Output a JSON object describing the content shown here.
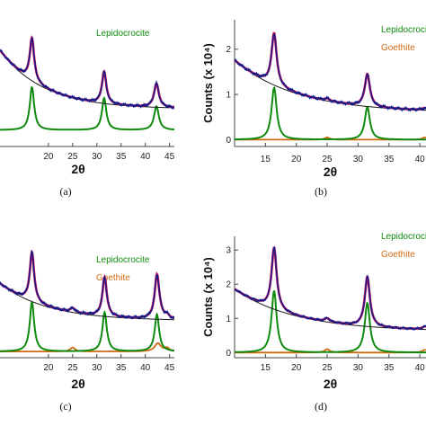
{
  "colors": {
    "fit": "#1f2fbf",
    "model": "#c0135a",
    "observed": "#0b1a8a",
    "background": "#1a1a1a",
    "lepidocrocite": "#0f8a0f",
    "goethite": "#d06a10",
    "axis": "#444444"
  },
  "chart_data": [
    {
      "type": "line",
      "caption": "(a)",
      "xlabel": "2θ",
      "ylabel": "",
      "xlim": [
        10,
        46
      ],
      "ylim": [
        -0.4,
        2.7
      ],
      "xticks": [
        20,
        25,
        30,
        35,
        40,
        45
      ],
      "yticks": [],
      "legend": [
        "Lepidocrocite"
      ],
      "peaks": {
        "lepidocrocite": [
          {
            "x": 16.6,
            "h": 1.05,
            "w": 0.55
          },
          {
            "x": 31.5,
            "h": 0.78,
            "w": 0.55
          },
          {
            "x": 42.3,
            "h": 0.58,
            "w": 0.6
          }
        ],
        "goethite": []
      },
      "background_curve": {
        "y_start": 1.95,
        "y_end": 0.52,
        "decay": 9
      },
      "offsets": {
        "phase": 0.0
      }
    },
    {
      "type": "line",
      "caption": "(b)",
      "xlabel": "2θ",
      "ylabel": "Counts (x 10⁴)",
      "xlim": [
        10,
        41
      ],
      "ylim": [
        -0.15,
        2.65
      ],
      "xticks": [
        15,
        20,
        25,
        30,
        35,
        40
      ],
      "yticks": [
        0,
        1,
        2
      ],
      "legend": [
        "Lepidocrocite",
        "Goethite"
      ],
      "peaks": {
        "lepidocrocite": [
          {
            "x": 16.4,
            "h": 1.15,
            "w": 0.5
          },
          {
            "x": 31.5,
            "h": 0.72,
            "w": 0.5
          }
        ],
        "goethite": [
          {
            "x": 25.0,
            "h": 0.05,
            "w": 0.5
          },
          {
            "x": 40.8,
            "h": 0.05,
            "w": 0.5
          }
        ]
      },
      "background_curve": {
        "y_start": 1.75,
        "y_end": 0.6,
        "decay": 10
      },
      "offsets": {
        "phase": 0.0
      }
    },
    {
      "type": "line",
      "caption": "(c)",
      "xlabel": "2θ",
      "ylabel": "",
      "xlim": [
        10,
        46
      ],
      "ylim": [
        -0.15,
        2.8
      ],
      "xticks": [
        20,
        25,
        30,
        35,
        40,
        45
      ],
      "yticks": [],
      "legend": [
        "Lepidocrocite",
        "Goethite"
      ],
      "peaks": {
        "lepidocrocite": [
          {
            "x": 16.6,
            "h": 1.2,
            "w": 0.55
          },
          {
            "x": 31.6,
            "h": 0.95,
            "w": 0.55
          },
          {
            "x": 42.4,
            "h": 0.9,
            "w": 0.55
          }
        ],
        "goethite": [
          {
            "x": 25.0,
            "h": 0.1,
            "w": 0.6
          },
          {
            "x": 42.6,
            "h": 0.2,
            "w": 0.8
          },
          {
            "x": 44.5,
            "h": 0.08,
            "w": 0.5
          }
        ]
      },
      "background_curve": {
        "y_start": 1.65,
        "y_end": 0.75,
        "decay": 10
      },
      "offsets": {
        "phase": 0.0
      }
    },
    {
      "type": "line",
      "caption": "(d)",
      "xlabel": "2θ",
      "ylabel": "Counts (x 10⁴)",
      "xlim": [
        10,
        41
      ],
      "ylim": [
        -0.15,
        3.4
      ],
      "xticks": [
        15,
        20,
        25,
        30,
        35,
        40
      ],
      "yticks": [
        0,
        1,
        2,
        3
      ],
      "legend": [
        "Lepidocrocite",
        "Goethite"
      ],
      "peaks": {
        "lepidocrocite": [
          {
            "x": 16.4,
            "h": 1.8,
            "w": 0.5
          },
          {
            "x": 31.5,
            "h": 1.45,
            "w": 0.5
          }
        ],
        "goethite": [
          {
            "x": 25.0,
            "h": 0.1,
            "w": 0.5
          },
          {
            "x": 40.8,
            "h": 0.08,
            "w": 0.5
          }
        ]
      },
      "background_curve": {
        "y_start": 1.85,
        "y_end": 0.62,
        "decay": 10
      },
      "offsets": {
        "phase": 0.0
      }
    }
  ]
}
